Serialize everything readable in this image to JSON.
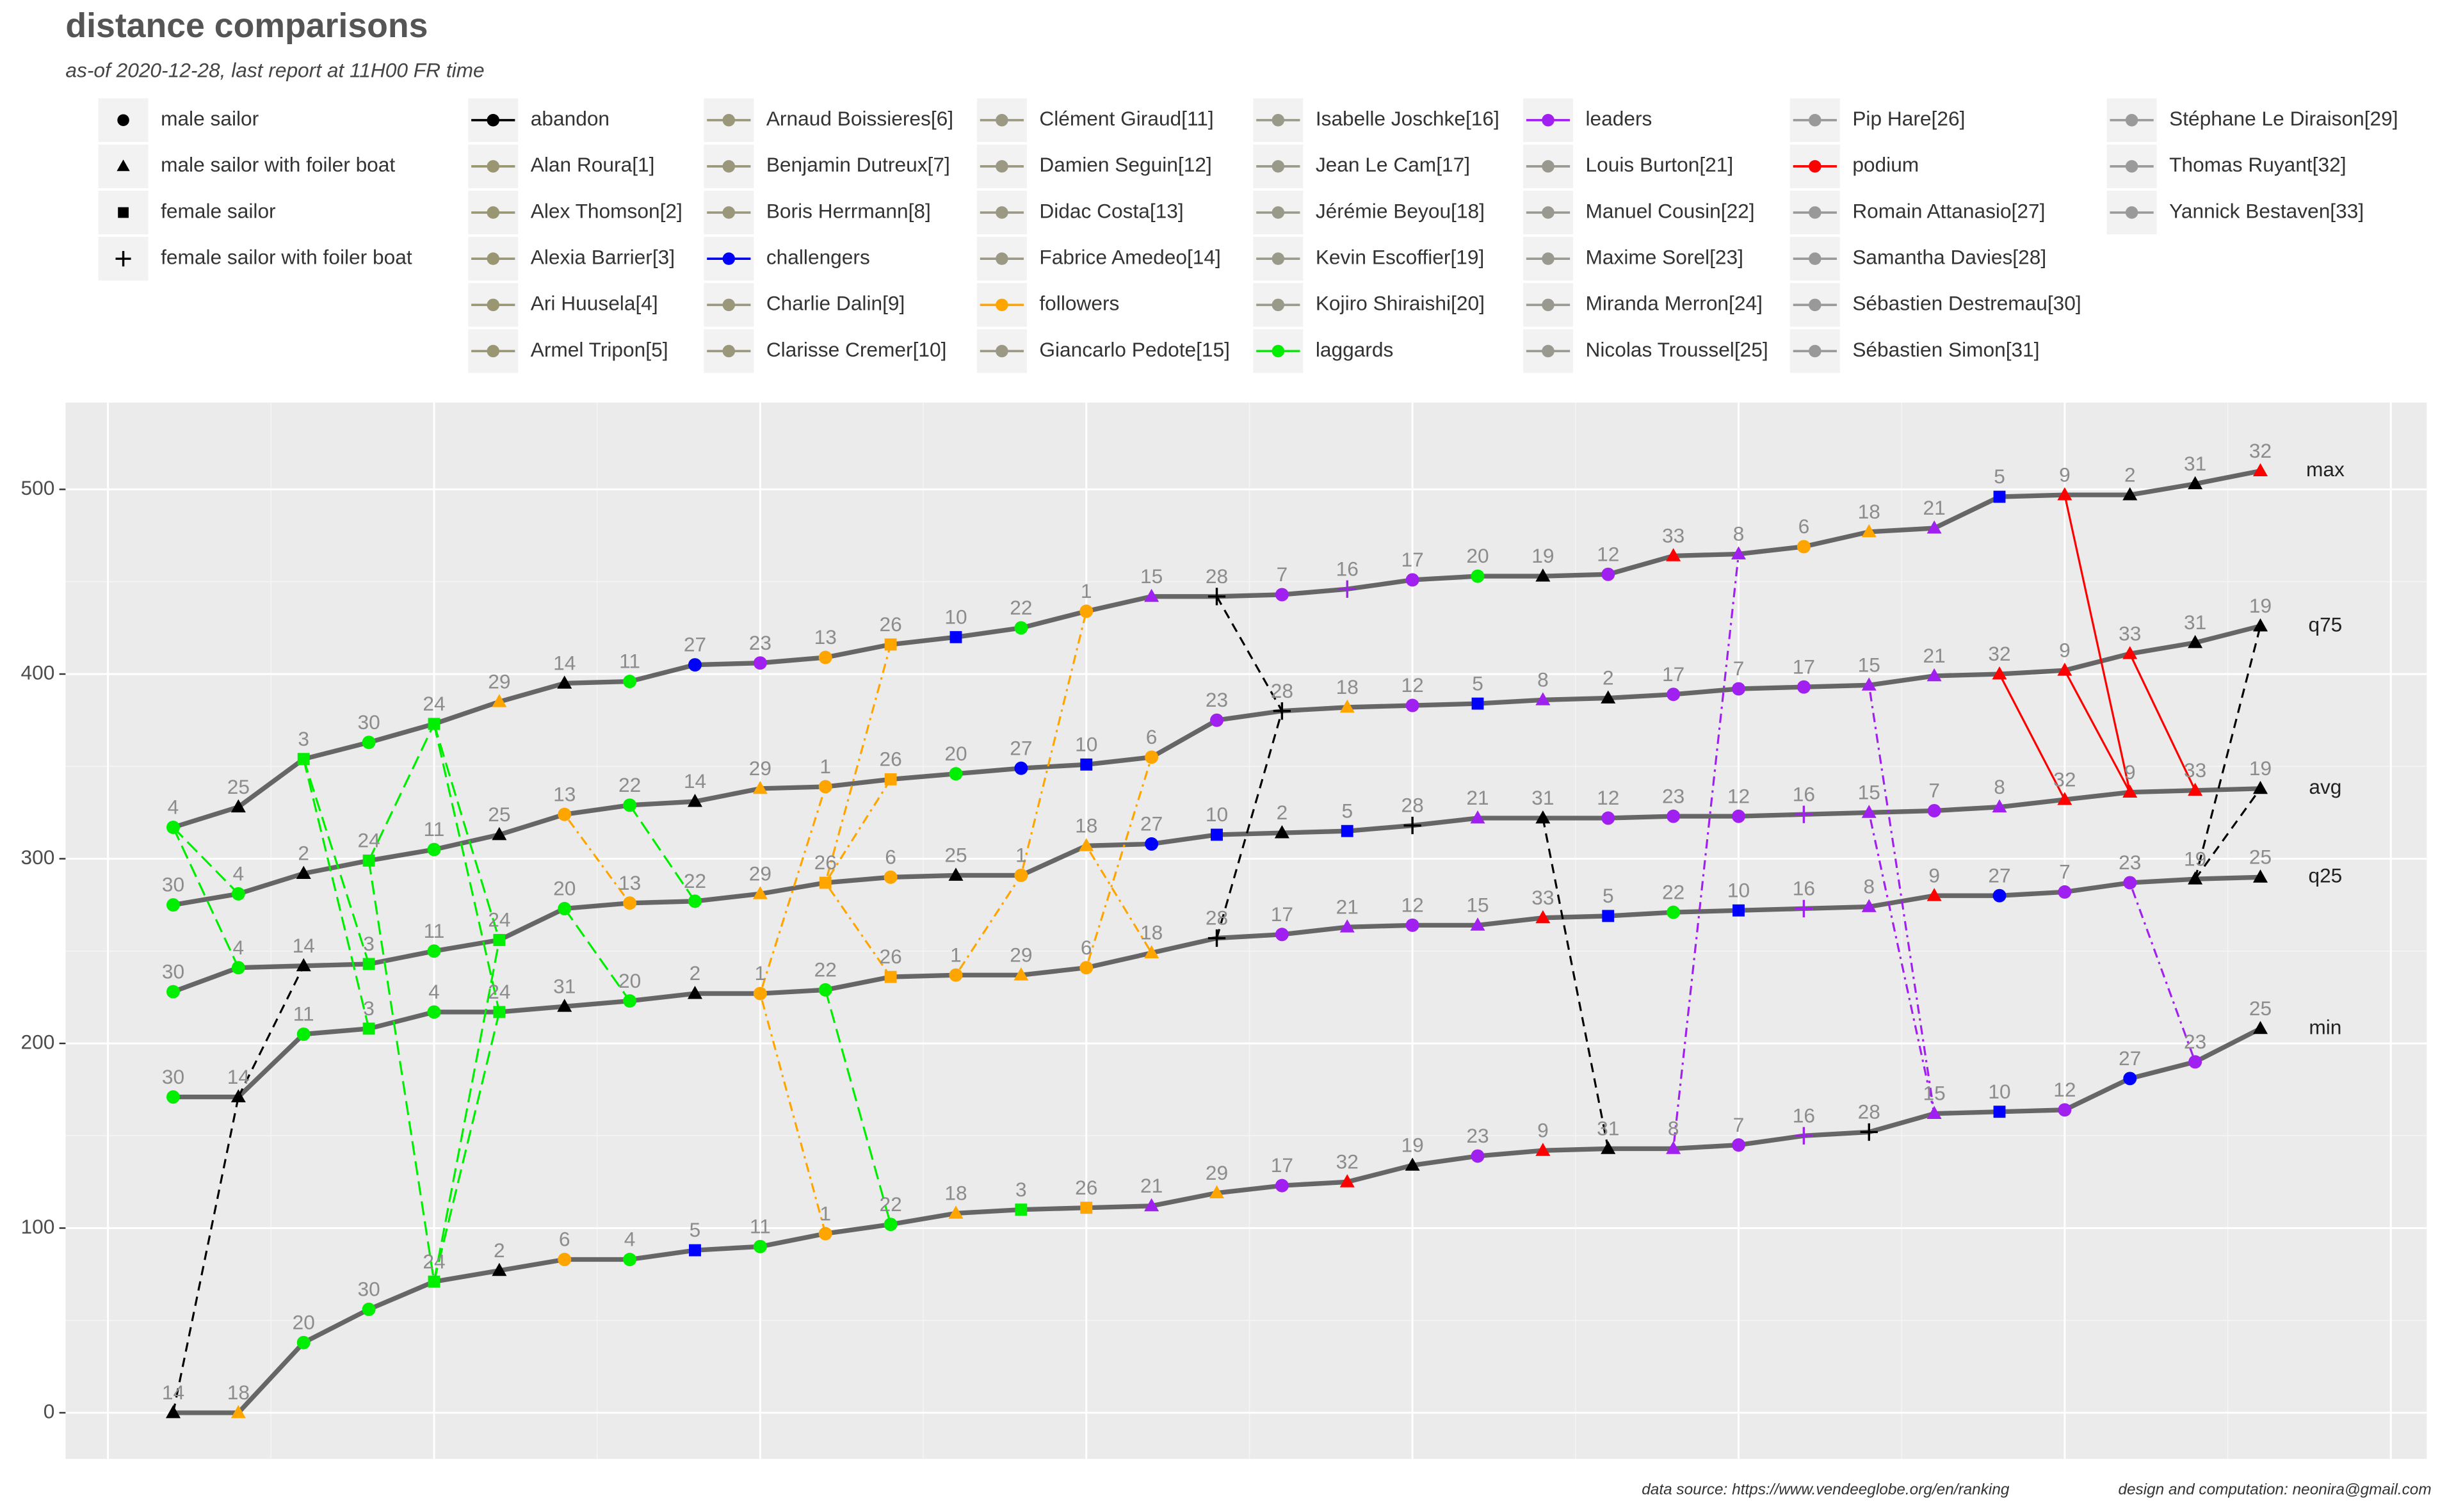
{
  "chart_data": {
    "type": "line",
    "title": "distance comparisons",
    "subtitle": "as-of 2020-12-28, last report at 11H00 FR time",
    "caption_source": "data source: https://www.vendeeglobe.org/en/ranking",
    "caption_author": "design and computation: neonira@gmail.com",
    "x": [
      1,
      2,
      3,
      4,
      5,
      6,
      7,
      8,
      9,
      10,
      11,
      12,
      13,
      14,
      15,
      16,
      17,
      18,
      19,
      20,
      21,
      22,
      23,
      24,
      25,
      26,
      27,
      28,
      29,
      30,
      31,
      32,
      33
    ],
    "xlim": [
      -0.65,
      35.55
    ],
    "xgrid": [
      0,
      5,
      10,
      15,
      20,
      25,
      30,
      35
    ],
    "ylim": [
      -25,
      547
    ],
    "yticks": [
      0,
      100,
      200,
      300,
      400,
      500
    ],
    "grid": true,
    "line_color": "#666666",
    "series": [
      {
        "name": "max",
        "values": [
          317,
          328,
          354,
          363,
          373,
          385,
          395,
          396,
          405,
          406,
          409,
          416,
          420,
          425,
          434,
          442,
          442,
          443,
          446,
          451,
          453,
          453,
          454,
          464,
          465,
          469,
          477,
          479,
          496,
          497,
          497,
          503,
          510
        ],
        "labels": [
          4,
          25,
          3,
          30,
          24,
          29,
          14,
          11,
          27,
          23,
          13,
          26,
          10,
          22,
          1,
          15,
          28,
          7,
          16,
          17,
          20,
          19,
          12,
          33,
          8,
          6,
          18,
          21,
          5,
          9,
          2,
          31,
          32
        ]
      },
      {
        "name": "q75",
        "values": [
          275,
          281,
          292,
          299,
          305,
          313,
          324,
          329,
          331,
          338,
          339,
          343,
          346,
          349,
          351,
          355,
          375,
          380,
          382,
          383,
          384,
          386,
          387,
          389,
          392,
          393,
          394,
          399,
          400,
          402,
          411,
          417,
          426
        ],
        "labels": [
          30,
          4,
          2,
          24,
          11,
          25,
          13,
          22,
          14,
          29,
          1,
          26,
          20,
          27,
          10,
          6,
          23,
          28,
          18,
          12,
          5,
          8,
          2,
          17,
          7,
          17,
          15,
          21,
          32,
          9,
          33,
          31,
          19
        ]
      },
      {
        "name": "avg",
        "values": [
          228,
          241,
          242,
          243,
          250,
          256,
          273,
          276,
          277,
          281,
          287,
          290,
          291,
          291,
          307,
          308,
          313,
          314,
          315,
          318,
          322,
          322,
          322,
          323,
          323,
          324,
          325,
          326,
          328,
          332,
          336,
          337,
          338
        ],
        "labels": [
          30,
          4,
          14,
          3,
          11,
          24,
          20,
          13,
          22,
          29,
          26,
          6,
          25,
          1,
          18,
          27,
          10,
          2,
          5,
          28,
          21,
          31,
          12,
          23,
          12,
          16,
          15,
          7,
          8,
          32,
          9,
          33,
          19
        ]
      },
      {
        "name": "q25",
        "values": [
          171,
          171,
          205,
          208,
          217,
          217,
          220,
          223,
          227,
          227,
          229,
          236,
          237,
          237,
          241,
          249,
          257,
          259,
          263,
          264,
          264,
          268,
          269,
          271,
          272,
          273,
          274,
          280,
          280,
          282,
          287,
          289,
          290
        ],
        "labels": [
          30,
          14,
          11,
          3,
          4,
          24,
          31,
          20,
          2,
          1,
          22,
          26,
          1,
          29,
          6,
          18,
          28,
          17,
          21,
          12,
          15,
          33,
          5,
          22,
          10,
          16,
          8,
          9,
          27,
          7,
          23,
          19,
          25
        ]
      },
      {
        "name": "min",
        "values": [
          0,
          0,
          38,
          56,
          71,
          77,
          83,
          83,
          88,
          90,
          97,
          102,
          108,
          110,
          111,
          112,
          119,
          123,
          125,
          134,
          139,
          142,
          143,
          143,
          145,
          150,
          152,
          162,
          163,
          164,
          181,
          190,
          208
        ],
        "labels": [
          14,
          18,
          20,
          30,
          24,
          2,
          6,
          4,
          5,
          11,
          1,
          22,
          18,
          3,
          26,
          21,
          29,
          17,
          32,
          19,
          23,
          9,
          31,
          8,
          7,
          16,
          28,
          15,
          10,
          12,
          27,
          23,
          25
        ]
      }
    ],
    "skippers": [
      {
        "group": "followers",
        "marker": "circle"
      },
      {
        "group": "abandon",
        "marker": "triangle"
      },
      {
        "group": "laggards",
        "marker": "square"
      },
      {
        "group": "laggards",
        "marker": "circle"
      },
      {
        "group": "challengers",
        "marker": "square"
      },
      {
        "group": "followers",
        "marker": "circle"
      },
      {
        "group": "leaders",
        "marker": "circle"
      },
      {
        "group": "leaders",
        "marker": "triangle"
      },
      {
        "group": "podium",
        "marker": "triangle"
      },
      {
        "group": "challengers",
        "marker": "square"
      },
      {
        "group": "laggards",
        "marker": "circle"
      },
      {
        "group": "leaders",
        "marker": "circle"
      },
      {
        "group": "followers",
        "marker": "circle"
      },
      {
        "group": "abandon",
        "marker": "triangle"
      },
      {
        "group": "leaders",
        "marker": "triangle"
      },
      {
        "group": "leaders",
        "marker": "plus"
      },
      {
        "group": "leaders",
        "marker": "circle"
      },
      {
        "group": "followers",
        "marker": "triangle"
      },
      {
        "group": "abandon",
        "marker": "triangle"
      },
      {
        "group": "laggards",
        "marker": "circle"
      },
      {
        "group": "leaders",
        "marker": "triangle"
      },
      {
        "group": "laggards",
        "marker": "circle"
      },
      {
        "group": "leaders",
        "marker": "circle"
      },
      {
        "group": "laggards",
        "marker": "square"
      },
      {
        "group": "abandon",
        "marker": "triangle"
      },
      {
        "group": "followers",
        "marker": "square"
      },
      {
        "group": "challengers",
        "marker": "circle"
      },
      {
        "group": "abandon",
        "marker": "plus"
      },
      {
        "group": "followers",
        "marker": "triangle"
      },
      {
        "group": "laggards",
        "marker": "circle"
      },
      {
        "group": "abandon",
        "marker": "triangle"
      },
      {
        "group": "podium",
        "marker": "triangle"
      },
      {
        "group": "podium",
        "marker": "triangle"
      }
    ],
    "marker_legend": [
      {
        "label": "male sailor",
        "marker": "circle"
      },
      {
        "label": "male sailor with foiler boat",
        "marker": "triangle"
      },
      {
        "label": "female sailor",
        "marker": "square"
      },
      {
        "label": "female sailor with foiler boat",
        "marker": "plus"
      }
    ],
    "legend": [
      [
        {
          "label": "abandon",
          "color": "#000000",
          "dash": "6,4"
        },
        {
          "label": "Alan Roura[1]",
          "color": "#9a9672"
        },
        {
          "label": "Alex Thomson[2]",
          "color": "#9a9672"
        },
        {
          "label": "Alexia Barrier[3]",
          "color": "#9a9672"
        },
        {
          "label": "Ari Huusela[4]",
          "color": "#9a9672"
        },
        {
          "label": "Armel Tripon[5]",
          "color": "#9a9672"
        }
      ],
      [
        {
          "label": "Arnaud Boissieres[6]",
          "color": "#9a977a"
        },
        {
          "label": "Benjamin Dutreux[7]",
          "color": "#9a977a"
        },
        {
          "label": "Boris Herrmann[8]",
          "color": "#9a977a"
        },
        {
          "label": "challengers",
          "color": "#0000ff",
          "dash": "1.5,3"
        },
        {
          "label": "Charlie Dalin[9]",
          "color": "#9a977a"
        },
        {
          "label": "Clarisse Cremer[10]",
          "color": "#9a977a"
        }
      ],
      [
        {
          "label": "Clément Giraud[11]",
          "color": "#9b9884"
        },
        {
          "label": "Damien Seguin[12]",
          "color": "#9b9884"
        },
        {
          "label": "Didac Costa[13]",
          "color": "#9b9884"
        },
        {
          "label": "Fabrice Amedeo[14]",
          "color": "#9b9884"
        },
        {
          "label": "followers",
          "color": "#ffa500",
          "dash": "1.5,3,6,3"
        },
        {
          "label": "Giancarlo Pedote[15]",
          "color": "#9b9884"
        }
      ],
      [
        {
          "label": "Isabelle Joschke[16]",
          "color": "#9a9a8a"
        },
        {
          "label": "Jean Le Cam[17]",
          "color": "#9a9a8a"
        },
        {
          "label": "Jérémie Beyou[18]",
          "color": "#9a9a8a"
        },
        {
          "label": "Kevin Escoffier[19]",
          "color": "#9a9a8a"
        },
        {
          "label": "Kojiro Shiraishi[20]",
          "color": "#9a9a8a"
        },
        {
          "label": "laggards",
          "color": "#00ee00",
          "dash": "9,4"
        }
      ],
      [
        {
          "label": "leaders",
          "color": "#a020f0",
          "dash": "1.5,3,6,3"
        },
        {
          "label": "Louis Burton[21]",
          "color": "#999990"
        },
        {
          "label": "Manuel Cousin[22]",
          "color": "#999990"
        },
        {
          "label": "Maxime Sorel[23]",
          "color": "#999990"
        },
        {
          "label": "Miranda Merron[24]",
          "color": "#999990"
        },
        {
          "label": "Nicolas Troussel[25]",
          "color": "#999990"
        }
      ],
      [
        {
          "label": "Pip Hare[26]",
          "color": "#999999"
        },
        {
          "label": "podium",
          "color": "#ff0000",
          "dash": "none"
        },
        {
          "label": "Romain Attanasio[27]",
          "color": "#999999"
        },
        {
          "label": "Samantha Davies[28]",
          "color": "#999999"
        },
        {
          "label": "Sébastien Destremau[30]",
          "color": "#999999"
        },
        {
          "label": "Sébastien Simon[31]",
          "color": "#999999"
        }
      ],
      [
        {
          "label": "Stéphane Le Diraison[29]",
          "color": "#9a9a9a"
        },
        {
          "label": "Thomas Ruyant[32]",
          "color": "#9a9a9a"
        },
        {
          "label": "Yannick Bestaven[33]",
          "color": "#9a9a9a"
        }
      ]
    ]
  }
}
